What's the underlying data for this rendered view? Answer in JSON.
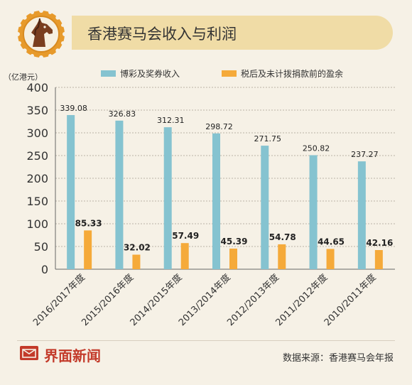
{
  "header": {
    "title": "香港赛马会收入与利润"
  },
  "footer": {
    "brand": "界面新闻",
    "source": "数据来源：香港赛马会年报"
  },
  "colors": {
    "series1": "#85c3d0",
    "series2": "#f5aa3a",
    "background": "#f6f1e6",
    "banner": "#f0dca6",
    "brand": "#c33a2a"
  },
  "icons": {
    "logo": "horse-head-badge-icon",
    "brand": "jiemian-logo-icon"
  },
  "chart_data": {
    "type": "bar",
    "ylabel": "（亿港元）",
    "ylim": [
      0,
      400
    ],
    "yticks": [
      "0",
      "50",
      "100",
      "150",
      "200",
      "250",
      "300",
      "350",
      "400"
    ],
    "categories": [
      "2016/2017年度",
      "2015/2016年度",
      "2014/2015年度",
      "2013/2014年度",
      "2012/2013年度",
      "2011/2012年度",
      "2010/2011年度"
    ],
    "legend_position": "top",
    "series": [
      {
        "name": "博彩及奖券收入",
        "values": [
          339.08,
          326.83,
          312.31,
          298.72,
          271.75,
          250.82,
          237.27
        ],
        "labels": [
          "339.08",
          "326.83",
          "312.31",
          "298.72",
          "271.75",
          "250.82",
          "237.27"
        ]
      },
      {
        "name": "税后及未计拨捐款前的盈余",
        "values": [
          85.33,
          32.02,
          57.49,
          45.39,
          54.78,
          44.65,
          42.16
        ],
        "labels": [
          "85.33",
          "32.02",
          "57.49",
          "45.39",
          "54.78",
          "44.65",
          "42.16"
        ]
      }
    ]
  }
}
